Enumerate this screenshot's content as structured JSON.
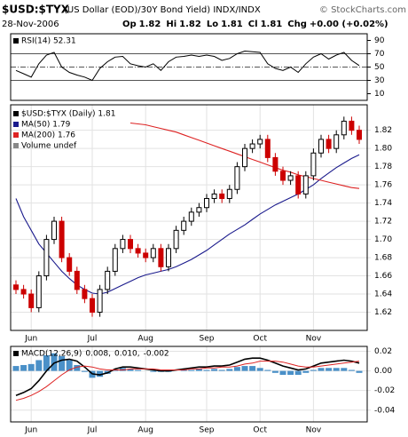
{
  "header": {
    "symbol": "$USD:$TYX",
    "description": "(US Dollar (EOD)/30Y Bond Yield) INDX/INDX",
    "copyright": "© StockCharts.com",
    "date": "28-Nov-2006",
    "quote": [
      {
        "label": "Op",
        "value": "1.82"
      },
      {
        "label": "Hi",
        "value": "1.82"
      },
      {
        "label": "Lo",
        "value": "1.81"
      },
      {
        "label": "Cl",
        "value": "1.81"
      },
      {
        "label": "Chg",
        "value": "+0.00 (+0.02%)"
      }
    ]
  },
  "chart_data": [
    {
      "type": "line",
      "title": "RSI(14) 52.31",
      "ylim": [
        0,
        100
      ],
      "yticks": [
        90,
        70,
        50,
        30,
        10
      ],
      "reference_lines": [
        70,
        50,
        30
      ],
      "grid": false,
      "series": [
        {
          "color": "#000000",
          "values": [
            45,
            40,
            35,
            55,
            68,
            72,
            50,
            42,
            38,
            35,
            30,
            48,
            58,
            65,
            66,
            55,
            52,
            50,
            55,
            45,
            58,
            65,
            66,
            68,
            66,
            68,
            66,
            60,
            63,
            70,
            74,
            73,
            72,
            55,
            48,
            45,
            50,
            42,
            55,
            65,
            70,
            62,
            68,
            72,
            60,
            52.31
          ]
        }
      ]
    },
    {
      "type": "candlestick",
      "grid": true,
      "volume_label": "Volume undef",
      "categories": [
        null,
        null,
        "Jun",
        null,
        null,
        null,
        null,
        null,
        null,
        null,
        "Jul",
        null,
        null,
        null,
        null,
        null,
        null,
        "Aug",
        null,
        null,
        null,
        null,
        null,
        null,
        null,
        "Sep",
        null,
        null,
        null,
        null,
        null,
        null,
        "Oct",
        null,
        null,
        null,
        null,
        null,
        null,
        "Nov",
        null,
        null,
        null,
        null,
        null,
        null
      ],
      "ylim": [
        1.6,
        1.848
      ],
      "yticks": [
        1.62,
        1.64,
        1.66,
        1.68,
        {
          "value": 1.7,
          "label": "1.70"
        },
        1.72,
        1.74,
        1.76,
        1.78,
        {
          "value": 1.8,
          "label": "1.80"
        },
        1.82
      ],
      "ohlc": {
        "name": "$USD:$TYX (Daily) 1.81",
        "up_color": "#000000",
        "down_color": "#cc0000",
        "open": [
          1.65,
          1.645,
          1.64,
          1.625,
          1.66,
          1.7,
          1.72,
          1.68,
          1.665,
          1.645,
          1.635,
          1.62,
          1.645,
          1.665,
          1.69,
          1.7,
          1.69,
          1.685,
          1.68,
          1.69,
          1.67,
          1.69,
          1.71,
          1.72,
          1.73,
          1.735,
          1.745,
          1.75,
          1.745,
          1.755,
          1.78,
          1.8,
          1.805,
          1.81,
          1.79,
          1.775,
          1.765,
          1.77,
          1.75,
          1.77,
          1.795,
          1.81,
          1.8,
          1.815,
          1.83,
          1.82
        ],
        "high": [
          1.655,
          1.65,
          1.645,
          1.665,
          1.705,
          1.725,
          1.725,
          1.685,
          1.67,
          1.65,
          1.64,
          1.65,
          1.67,
          1.695,
          1.705,
          1.705,
          1.695,
          1.69,
          1.695,
          1.695,
          1.695,
          1.715,
          1.725,
          1.735,
          1.74,
          1.75,
          1.755,
          1.755,
          1.76,
          1.785,
          1.805,
          1.81,
          1.815,
          1.815,
          1.795,
          1.78,
          1.775,
          1.775,
          1.775,
          1.8,
          1.815,
          1.815,
          1.82,
          1.835,
          1.835,
          1.825
        ],
        "low": [
          1.64,
          1.635,
          1.62,
          1.62,
          1.655,
          1.695,
          1.675,
          1.66,
          1.64,
          1.63,
          1.615,
          1.615,
          1.64,
          1.66,
          1.685,
          1.685,
          1.68,
          1.675,
          1.675,
          1.665,
          1.665,
          1.685,
          1.705,
          1.715,
          1.725,
          1.73,
          1.74,
          1.74,
          1.74,
          1.75,
          1.775,
          1.795,
          1.8,
          1.785,
          1.77,
          1.76,
          1.76,
          1.745,
          1.745,
          1.765,
          1.79,
          1.795,
          1.795,
          1.81,
          1.815,
          1.805
        ],
        "close": [
          1.645,
          1.64,
          1.625,
          1.66,
          1.7,
          1.72,
          1.68,
          1.665,
          1.645,
          1.635,
          1.62,
          1.645,
          1.665,
          1.69,
          1.7,
          1.69,
          1.685,
          1.68,
          1.69,
          1.67,
          1.69,
          1.71,
          1.72,
          1.73,
          1.735,
          1.745,
          1.75,
          1.745,
          1.755,
          1.78,
          1.8,
          1.805,
          1.81,
          1.79,
          1.775,
          1.765,
          1.77,
          1.75,
          1.77,
          1.795,
          1.81,
          1.8,
          1.815,
          1.83,
          1.82,
          1.81
        ]
      },
      "series": [
        {
          "name": "MA(50) 1.79",
          "color": "#1a1a8c",
          "values": [
            1.745,
            1.725,
            1.71,
            1.695,
            1.685,
            1.675,
            1.665,
            1.657,
            1.65,
            1.645,
            1.641,
            1.64,
            1.642,
            1.646,
            1.65,
            1.654,
            1.658,
            1.661,
            1.663,
            1.665,
            1.667,
            1.67,
            1.674,
            1.678,
            1.683,
            1.688,
            1.694,
            1.7,
            1.706,
            1.711,
            1.716,
            1.722,
            1.728,
            1.733,
            1.738,
            1.742,
            1.746,
            1.75,
            1.755,
            1.76,
            1.767,
            1.773,
            1.779,
            1.784,
            1.789,
            1.793
          ]
        },
        {
          "name": "MA(200) 1.76",
          "color": "#dd2222",
          "values": [
            null,
            null,
            null,
            null,
            null,
            null,
            null,
            null,
            null,
            null,
            null,
            null,
            null,
            null,
            null,
            1.828,
            1.827,
            1.826,
            1.824,
            1.822,
            1.82,
            1.818,
            1.815,
            1.812,
            1.809,
            1.806,
            1.803,
            1.8,
            1.797,
            1.794,
            1.791,
            1.788,
            1.785,
            1.782,
            1.779,
            1.776,
            1.774,
            1.771,
            1.769,
            1.767,
            1.765,
            1.763,
            1.761,
            1.759,
            1.757,
            1.756
          ]
        }
      ]
    },
    {
      "type": "line",
      "title": "MACD(12,26,9)",
      "grid": true,
      "categories": [
        null,
        null,
        "Jun",
        null,
        null,
        null,
        null,
        null,
        null,
        null,
        "Jul",
        null,
        null,
        null,
        null,
        null,
        null,
        "Aug",
        null,
        null,
        null,
        null,
        null,
        null,
        null,
        "Sep",
        null,
        null,
        null,
        null,
        null,
        null,
        "Oct",
        null,
        null,
        null,
        null,
        null,
        null,
        "Nov",
        null,
        null,
        null,
        null,
        null,
        null
      ],
      "ylim": [
        -0.052,
        0.025
      ],
      "yticks": [
        0.02,
        {
          "value": 0,
          "label": "0.00"
        },
        -0.02,
        -0.04
      ],
      "series": [
        {
          "name": "0.008,",
          "color": "#000000",
          "values": [
            -0.025,
            -0.022,
            -0.018,
            -0.01,
            0,
            0.008,
            0.011,
            0.012,
            0.01,
            0.004,
            -0.003,
            -0.004,
            -0.002,
            0.002,
            0.004,
            0.004,
            0.003,
            0.002,
            0.001,
            0,
            0,
            0.001,
            0.002,
            0.003,
            0.004,
            0.004,
            0.005,
            0.005,
            0.006,
            0.009,
            0.012,
            0.013,
            0.013,
            0.011,
            0.008,
            0.005,
            0.003,
            0.001,
            0.002,
            0.005,
            0.008,
            0.009,
            0.01,
            0.011,
            0.01,
            0.008
          ]
        },
        {
          "name": "0.010,",
          "color": "#dd2222",
          "values": [
            -0.03,
            -0.028,
            -0.025,
            -0.021,
            -0.016,
            -0.01,
            -0.004,
            0.001,
            0.004,
            0.005,
            0.004,
            0.002,
            0.001,
            0.001,
            0.001,
            0.002,
            0.002,
            0.002,
            0.002,
            0.001,
            0.001,
            0.001,
            0.001,
            0.002,
            0.002,
            0.003,
            0.003,
            0.004,
            0.004,
            0.005,
            0.007,
            0.008,
            0.01,
            0.01,
            0.01,
            0.009,
            0.007,
            0.005,
            0.004,
            0.004,
            0.005,
            0.006,
            0.007,
            0.008,
            0.009,
            0.01
          ]
        },
        {
          "name": "-0.002",
          "color": "#4a90c8",
          "kind": "bar",
          "values": [
            0.005,
            0.006,
            0.007,
            0.011,
            0.016,
            0.018,
            0.015,
            0.011,
            0.006,
            -0.001,
            -0.007,
            -0.006,
            -0.003,
            0.001,
            0.003,
            0.002,
            0.001,
            0,
            -0.001,
            -0.001,
            -0.001,
            0,
            0.001,
            0.001,
            0.002,
            0.001,
            0.002,
            0.001,
            0.002,
            0.004,
            0.005,
            0.005,
            0.003,
            0.001,
            -0.002,
            -0.004,
            -0.004,
            -0.004,
            -0.002,
            0.001,
            0.003,
            0.003,
            0.003,
            0.003,
            0.001,
            -0.002
          ]
        }
      ]
    }
  ]
}
